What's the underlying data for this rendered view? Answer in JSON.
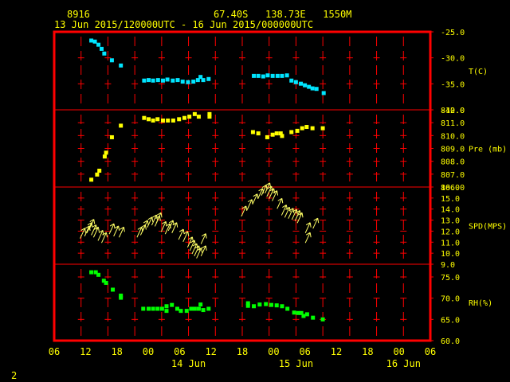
{
  "header": {
    "station_id": "8916",
    "location": "67.40S   138.73E   1550M",
    "time_range": "13 Jun 2015/120000UTC - 16 Jun 2015/000000UTC"
  },
  "corner_label": "2",
  "colors": {
    "background": "#000000",
    "frame": "#ff0000",
    "text": "#ffff00",
    "temperature": "#00e5ff",
    "pressure": "#ffff00",
    "speed": "#ffff66",
    "humidity": "#00ff00"
  },
  "chart_data": {
    "type": "scatter",
    "x_hours_range": [
      -6,
      78
    ],
    "x_tick_labels": [
      "06",
      "12",
      "18",
      "00",
      "06",
      "12",
      "18",
      "00",
      "06",
      "12",
      "18",
      "00",
      "06"
    ],
    "date_labels": [
      "14 Jun",
      "15 Jun",
      "16 Jun"
    ],
    "panels": [
      {
        "name": "T(C)",
        "ylim": [
          -40,
          -25
        ],
        "y_ticks": [
          "-25.0",
          "-30.0",
          "-35.0",
          "-40.0"
        ],
        "y_tick_values": [
          -25,
          -30,
          -35,
          -40
        ],
        "points": [
          [
            2.2,
            -26.6
          ],
          [
            3,
            -26.8
          ],
          [
            3.8,
            -27.4
          ],
          [
            4.5,
            -28.2
          ],
          [
            5.1,
            -29.1
          ],
          [
            6.8,
            -30.4
          ],
          [
            8.8,
            -31.4
          ],
          [
            14,
            -34.3
          ],
          [
            15,
            -34.2
          ],
          [
            16,
            -34.3
          ],
          [
            17.1,
            -34.2
          ],
          [
            18.2,
            -34.3
          ],
          [
            19.2,
            -34.1
          ],
          [
            20.4,
            -34.3
          ],
          [
            21.5,
            -34.2
          ],
          [
            22.6,
            -34.5
          ],
          [
            23.8,
            -34.6
          ],
          [
            25,
            -34.5
          ],
          [
            26,
            -34.2
          ],
          [
            26.6,
            -33.6
          ],
          [
            27.2,
            -34.2
          ],
          [
            28.4,
            -34.0
          ],
          [
            38.5,
            -33.4
          ],
          [
            39.5,
            -33.4
          ],
          [
            40.6,
            -33.5
          ],
          [
            41.6,
            -33.3
          ],
          [
            42.7,
            -33.4
          ],
          [
            43.8,
            -33.4
          ],
          [
            44.8,
            -33.4
          ],
          [
            45.9,
            -33.3
          ],
          [
            46.9,
            -34.3
          ],
          [
            47.9,
            -34.6
          ],
          [
            49,
            -34.9
          ],
          [
            49.9,
            -35.2
          ],
          [
            50.8,
            -35.5
          ],
          [
            51.6,
            -35.8
          ],
          [
            52.5,
            -35.9
          ],
          [
            54.1,
            -36.7
          ]
        ]
      },
      {
        "name": "Pre (mb)",
        "ylim": [
          806,
          812
        ],
        "y_ticks": [
          "812.0",
          "811.0",
          "810.0",
          "809.0",
          "808.0",
          "807.0",
          "806.0"
        ],
        "y_tick_values": [
          812,
          811,
          810,
          809,
          808,
          807,
          806
        ],
        "points": [
          [
            2.2,
            806.6
          ],
          [
            3.5,
            807.0
          ],
          [
            4,
            807.3
          ],
          [
            5.2,
            808.4
          ],
          [
            5.5,
            808.7
          ],
          [
            6.8,
            809.9
          ],
          [
            8.8,
            810.8
          ],
          [
            14,
            811.4
          ],
          [
            15,
            811.3
          ],
          [
            16,
            811.2
          ],
          [
            17,
            811.3
          ],
          [
            18.2,
            811.2
          ],
          [
            19.3,
            811.2
          ],
          [
            20.5,
            811.2
          ],
          [
            21.8,
            811.3
          ],
          [
            23,
            811.4
          ],
          [
            24.1,
            811.5
          ],
          [
            25.3,
            811.7
          ],
          [
            26.2,
            811.5
          ],
          [
            28.6,
            811.7
          ],
          [
            28.6,
            811.5
          ],
          [
            38.3,
            810.3
          ],
          [
            39.5,
            810.2
          ],
          [
            41.5,
            809.9
          ],
          [
            42.7,
            810.1
          ],
          [
            43.6,
            810.2
          ],
          [
            44.5,
            810.2
          ],
          [
            44.8,
            810.0
          ],
          [
            46.9,
            810.3
          ],
          [
            48.2,
            810.4
          ],
          [
            49.3,
            810.6
          ],
          [
            50.3,
            810.7
          ],
          [
            51.6,
            810.6
          ],
          [
            53.9,
            810.6
          ]
        ]
      },
      {
        "name": "SPD(MPS)",
        "ylim": [
          9,
          16
        ],
        "y_ticks": [
          "16.0",
          "15.0",
          "14.0",
          "13.0",
          "12.0",
          "11.0",
          "10.0",
          "9.0"
        ],
        "y_tick_values": [
          16,
          15,
          14,
          13,
          12,
          11,
          10,
          9
        ],
        "points": [
          [
            0.5,
            12.2
          ],
          [
            1.5,
            12.4
          ],
          [
            2,
            12.7
          ],
          [
            2.5,
            13.0
          ],
          [
            3,
            12.5
          ],
          [
            3.5,
            12.3
          ],
          [
            4.5,
            12.0
          ],
          [
            5.3,
            11.8
          ],
          [
            7,
            12.6
          ],
          [
            8,
            12.4
          ],
          [
            9.2,
            12.3
          ],
          [
            13.2,
            12.3
          ],
          [
            14,
            12.5
          ],
          [
            14.5,
            12.9
          ],
          [
            15.5,
            13.2
          ],
          [
            16.5,
            13.4
          ],
          [
            17.2,
            13.3
          ],
          [
            17.5,
            13.6
          ],
          [
            18.6,
            12.8
          ],
          [
            19.5,
            12.6
          ],
          [
            20.2,
            12.9
          ],
          [
            21,
            12.7
          ],
          [
            22.5,
            12.1
          ],
          [
            23.5,
            11.9
          ],
          [
            24.5,
            11.4
          ],
          [
            25,
            11.1
          ],
          [
            25.5,
            10.8
          ],
          [
            26,
            10.6
          ],
          [
            26.5,
            10.4
          ],
          [
            27.5,
            10.6
          ],
          [
            27.5,
            11.7
          ],
          [
            36.5,
            14.2
          ],
          [
            37.8,
            14.8
          ],
          [
            39,
            15.3
          ],
          [
            40.2,
            15.8
          ],
          [
            41,
            16.1
          ],
          [
            41.8,
            16.3
          ],
          [
            42.2,
            16.0
          ],
          [
            42.7,
            15.8
          ],
          [
            43.4,
            15.6
          ],
          [
            44.5,
            14.9
          ],
          [
            45.5,
            14.3
          ],
          [
            46.2,
            14.1
          ],
          [
            47,
            14.0
          ],
          [
            47.8,
            13.9
          ],
          [
            48.5,
            13.8
          ],
          [
            49,
            13.6
          ],
          [
            50.8,
            12.7
          ],
          [
            50.8,
            11.8
          ],
          [
            52.5,
            13.1
          ]
        ]
      },
      {
        "name": "RH(%)",
        "ylim": [
          60,
          78
        ],
        "y_ticks": [
          "75.0",
          "70.0",
          "65.0",
          "60.0"
        ],
        "y_tick_values": [
          75,
          70,
          65,
          60
        ],
        "points": [
          [
            2.2,
            76.2
          ],
          [
            3.2,
            76.2
          ],
          [
            3.8,
            75.6
          ],
          [
            5,
            74.2
          ],
          [
            5.5,
            73.7
          ],
          [
            7,
            72.1
          ],
          [
            8.8,
            70.7
          ],
          [
            8.8,
            70.2
          ],
          [
            13.8,
            67.6
          ],
          [
            15,
            67.6
          ],
          [
            16,
            67.6
          ],
          [
            17,
            67.6
          ],
          [
            18,
            67.6
          ],
          [
            19,
            68.2
          ],
          [
            19,
            67.1
          ],
          [
            20.2,
            68.5
          ],
          [
            21.4,
            67.6
          ],
          [
            22.2,
            67.1
          ],
          [
            23.5,
            67.1
          ],
          [
            24.5,
            67.6
          ],
          [
            25.3,
            67.6
          ],
          [
            26.2,
            67.6
          ],
          [
            26.6,
            68.6
          ],
          [
            27.2,
            67.3
          ],
          [
            28.4,
            67.6
          ],
          [
            37.2,
            68.3
          ],
          [
            37.2,
            68.9
          ],
          [
            38.5,
            68.2
          ],
          [
            39.8,
            68.6
          ],
          [
            41.2,
            68.7
          ],
          [
            42.4,
            68.5
          ],
          [
            43.6,
            68.4
          ],
          [
            44.8,
            68.2
          ],
          [
            46,
            67.6
          ],
          [
            47.5,
            66.7
          ],
          [
            48.4,
            66.6
          ],
          [
            49.1,
            66.6
          ],
          [
            49.6,
            65.9
          ],
          [
            50.4,
            66.3
          ],
          [
            51.7,
            65.5
          ],
          [
            53.9,
            65.1
          ]
        ]
      }
    ]
  }
}
